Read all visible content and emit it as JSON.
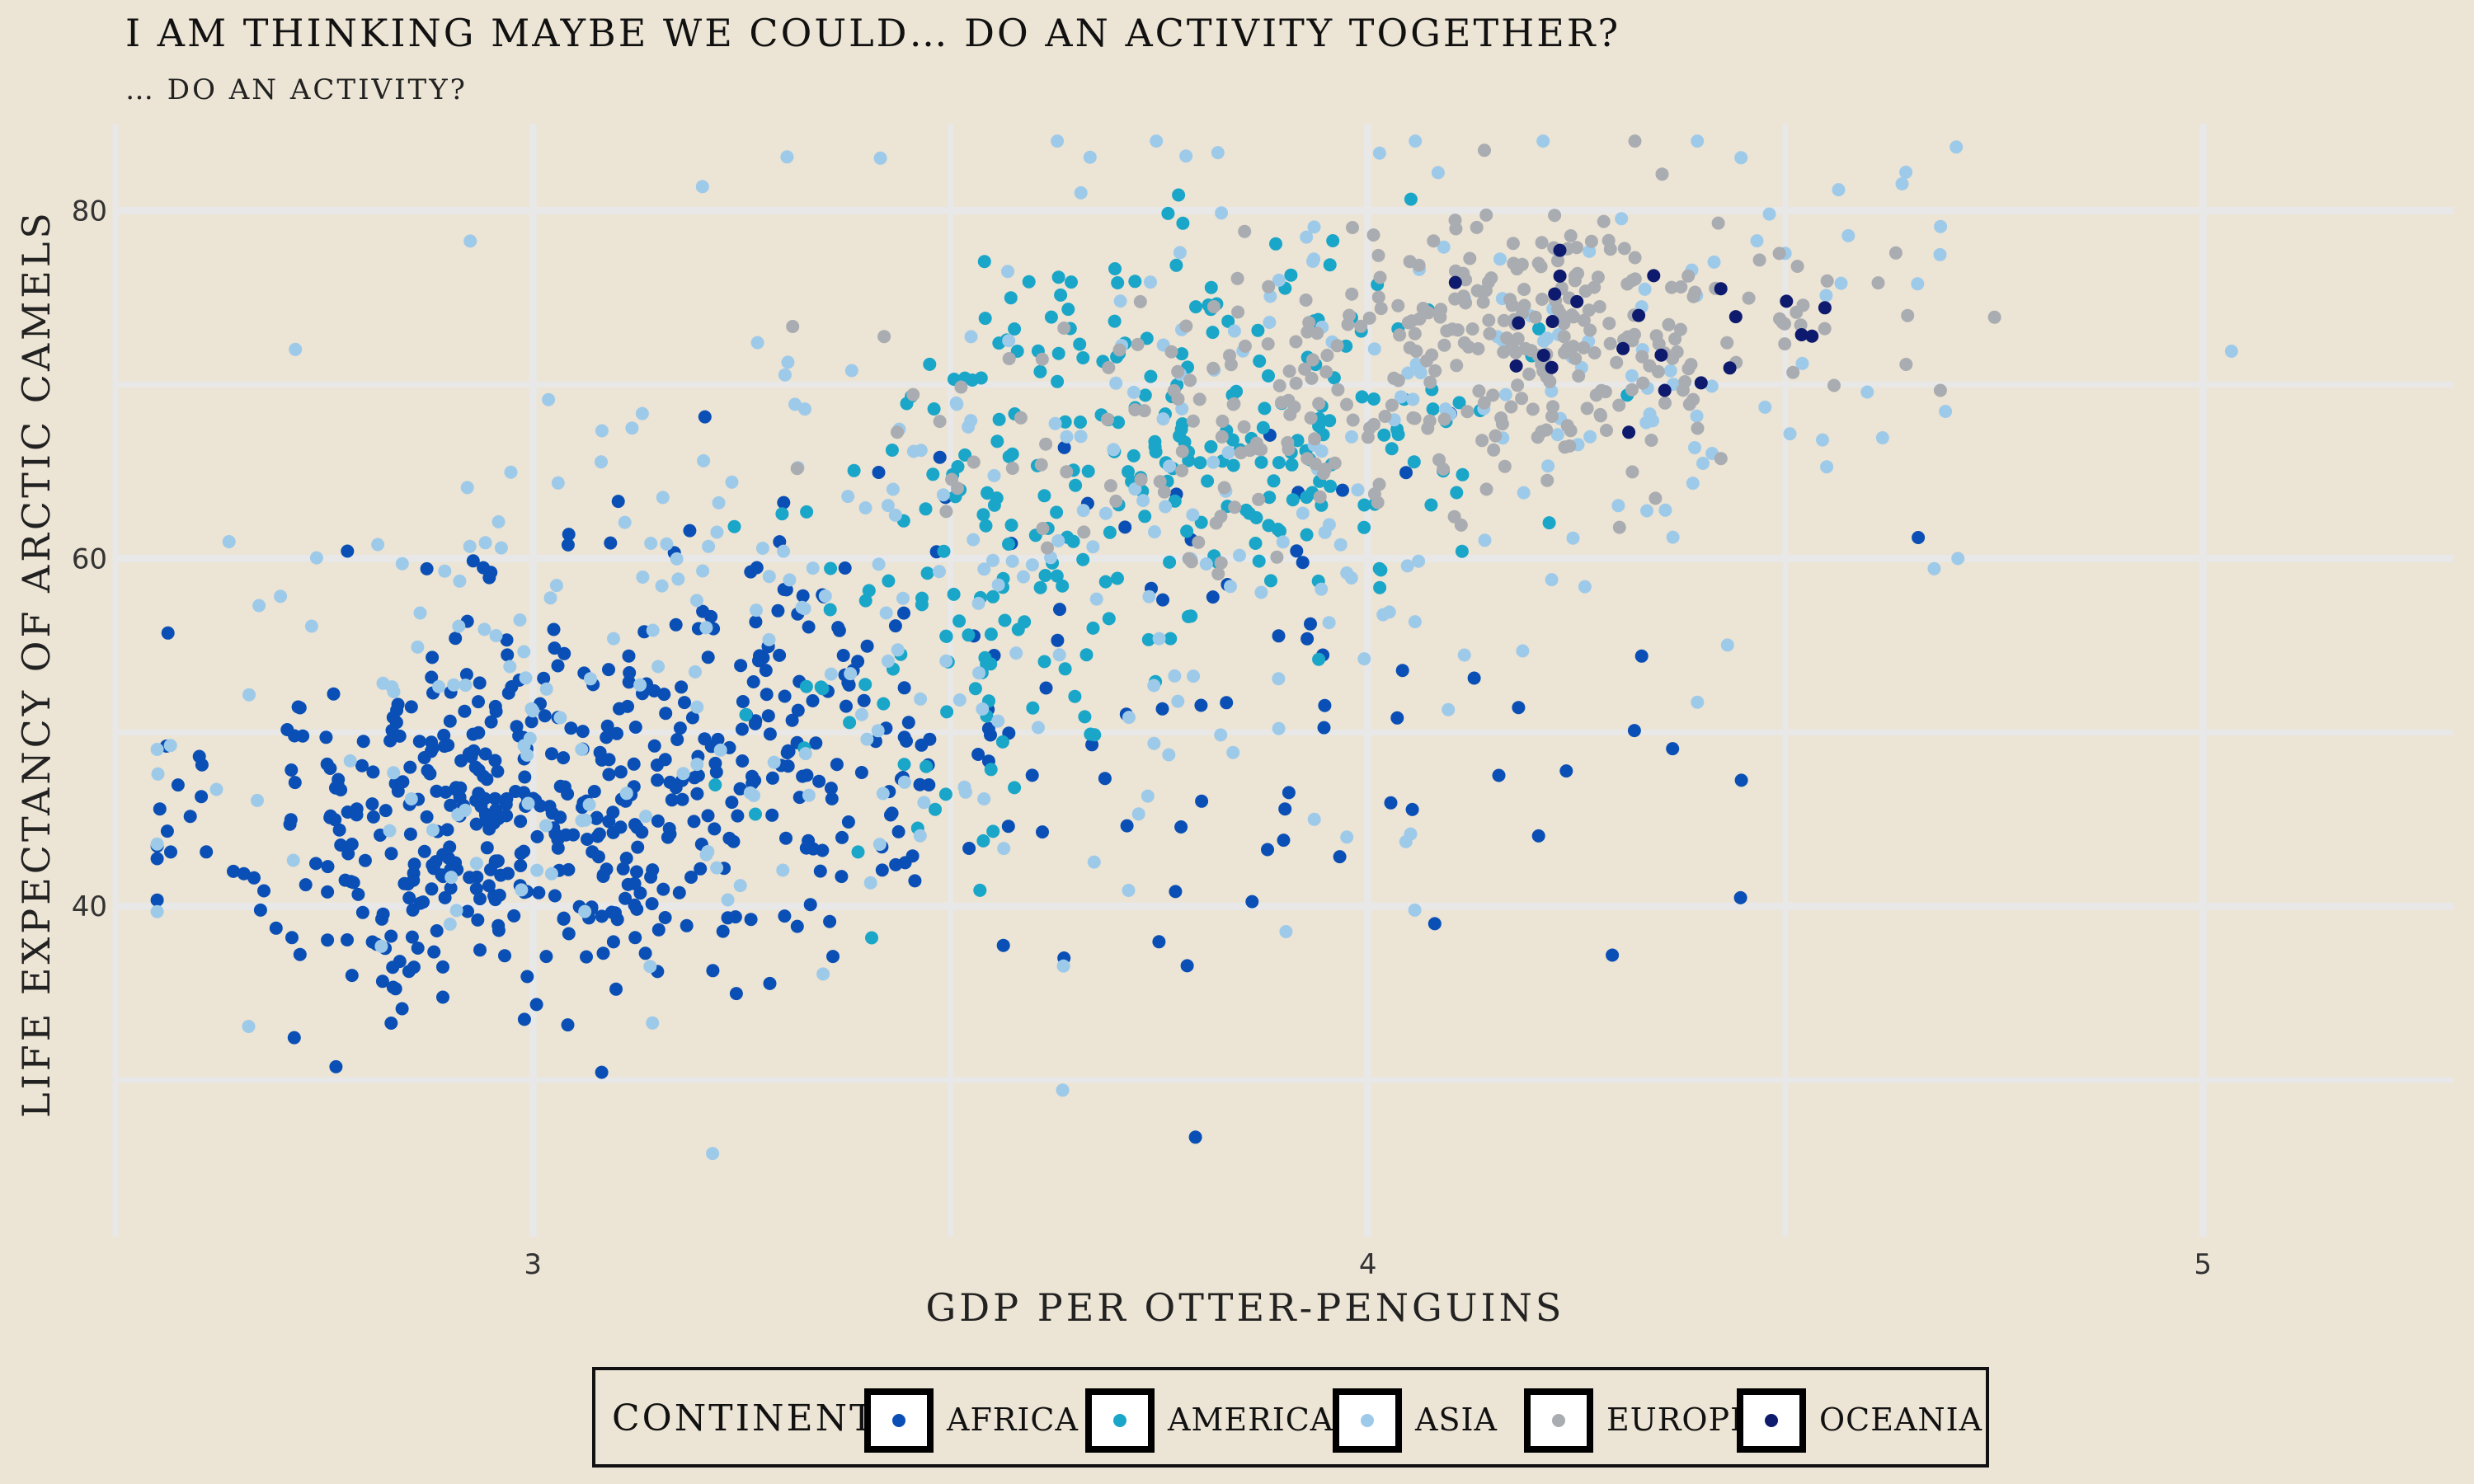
{
  "chart_data": {
    "type": "scatter",
    "title": "I AM THINKING MAYBE WE COULD… DO AN ACTIVITY TOGETHER?",
    "subtitle": "… DO AN ACTIVITY?",
    "xlabel": "GDP PER OTTER-PENGUINS",
    "ylabel": "LIFE EXPECTANCY OF ARCTIC CAMELS",
    "x_scale": "log10",
    "x_ticks": [
      3,
      4,
      5
    ],
    "x_tick_labels": [
      "3",
      "4",
      "5"
    ],
    "y_ticks": [
      40,
      60,
      80
    ],
    "y_tick_labels": [
      "40",
      "60",
      "80"
    ],
    "xlim": [
      2.5,
      5.3
    ],
    "ylim": [
      21,
      85
    ],
    "grid": true,
    "legend": {
      "title": "CONTINENT",
      "position": "bottom",
      "entries": [
        "AFRICA",
        "AMERICAS",
        "ASIA",
        "EUROPE",
        "OCEANIA"
      ]
    },
    "series": [
      {
        "name": "AFRICA",
        "color": "#0a4fb5",
        "n": 624,
        "clusters": [
          {
            "weight": 0.62,
            "x": 2.95,
            "y": 45.0,
            "sx": 0.16,
            "sy": 5.5
          },
          {
            "weight": 0.26,
            "x": 3.3,
            "y": 50.0,
            "sx": 0.14,
            "sy": 6.0
          },
          {
            "weight": 0.12,
            "x": 3.85,
            "y": 53.0,
            "sx": 0.28,
            "sy": 8.0
          }
        ]
      },
      {
        "name": "AMERICAS",
        "color": "#1aa6c8",
        "n": 300,
        "clusters": [
          {
            "weight": 0.7,
            "x": 3.8,
            "y": 68.0,
            "sx": 0.18,
            "sy": 5.0
          },
          {
            "weight": 0.3,
            "x": 3.55,
            "y": 55.0,
            "sx": 0.15,
            "sy": 6.0
          }
        ]
      },
      {
        "name": "ASIA",
        "color": "#9ecaea",
        "n": 396,
        "clusters": [
          {
            "weight": 0.35,
            "x": 3.1,
            "y": 50.0,
            "sx": 0.3,
            "sy": 9.0
          },
          {
            "weight": 0.4,
            "x": 3.7,
            "y": 63.0,
            "sx": 0.35,
            "sy": 9.0
          },
          {
            "weight": 0.25,
            "x": 4.25,
            "y": 72.0,
            "sx": 0.3,
            "sy": 7.0
          }
        ]
      },
      {
        "name": "EUROPE",
        "color": "#a9acb1",
        "n": 360,
        "clusters": [
          {
            "weight": 0.75,
            "x": 4.2,
            "y": 72.5,
            "sx": 0.18,
            "sy": 3.5
          },
          {
            "weight": 0.25,
            "x": 3.8,
            "y": 67.0,
            "sx": 0.18,
            "sy": 4.0
          }
        ]
      },
      {
        "name": "OCEANIA",
        "color": "#0d1a6e",
        "n": 24,
        "clusters": [
          {
            "weight": 1.0,
            "x": 4.3,
            "y": 74.0,
            "sx": 0.15,
            "sy": 3.0
          }
        ]
      }
    ]
  }
}
